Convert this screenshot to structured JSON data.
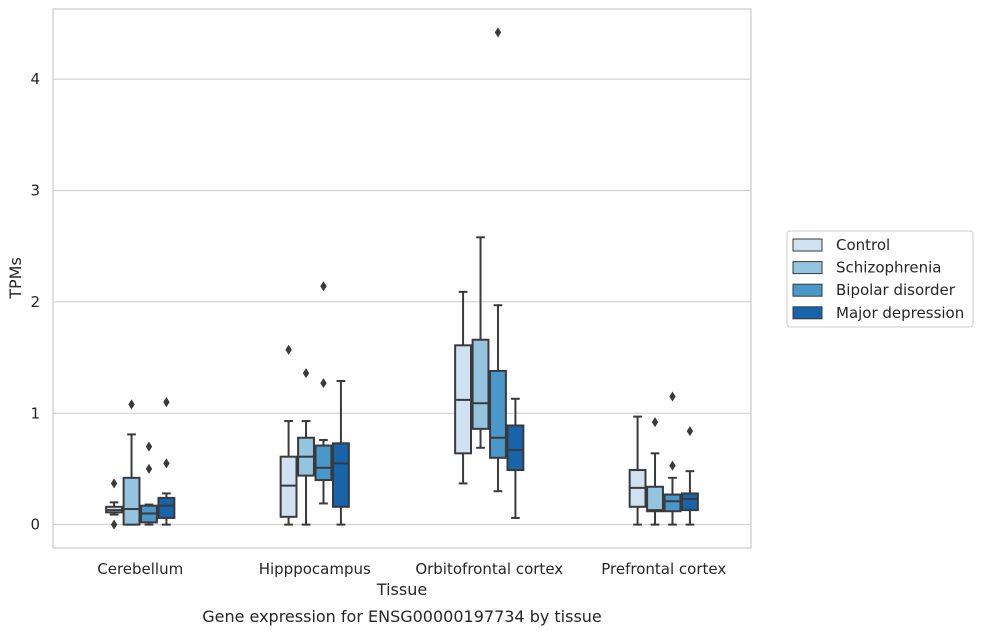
{
  "chart_data": {
    "type": "box",
    "xlabel": "Tissue",
    "ylabel": "TPMs",
    "caption": "Gene expression for ENSG00000197734 by tissue",
    "categories": [
      "Cerebellum",
      "Hipppocampus",
      "Orbitofrontal cortex",
      "Prefrontal cortex"
    ],
    "ylim": [
      -0.21,
      4.63
    ],
    "yticks": [
      0,
      1,
      2,
      3,
      4
    ],
    "grid": true,
    "legend_position": "right",
    "series": [
      {
        "name": "Control",
        "color": "#d0e1f2",
        "boxes": [
          {
            "whislo": 0.09,
            "q1": 0.11,
            "med": 0.13,
            "q3": 0.16,
            "whishi": 0.2,
            "fliers": [
              0.37,
              0.0
            ]
          },
          {
            "whislo": 0.0,
            "q1": 0.07,
            "med": 0.35,
            "q3": 0.61,
            "whishi": 0.93,
            "fliers": [
              1.57
            ]
          },
          {
            "whislo": 0.37,
            "q1": 0.64,
            "med": 1.12,
            "q3": 1.61,
            "whishi": 2.09,
            "fliers": []
          },
          {
            "whislo": 0.0,
            "q1": 0.16,
            "med": 0.33,
            "q3": 0.49,
            "whishi": 0.97,
            "fliers": []
          }
        ]
      },
      {
        "name": "Schizophrenia",
        "color": "#94c4df",
        "boxes": [
          {
            "whislo": 0.0,
            "q1": 0.0,
            "med": 0.14,
            "q3": 0.42,
            "whishi": 0.81,
            "fliers": [
              1.08
            ]
          },
          {
            "whislo": 0.0,
            "q1": 0.44,
            "med": 0.61,
            "q3": 0.78,
            "whishi": 0.93,
            "fliers": [
              1.36
            ]
          },
          {
            "whislo": 0.69,
            "q1": 0.86,
            "med": 1.09,
            "q3": 1.66,
            "whishi": 2.58,
            "fliers": []
          },
          {
            "whislo": 0.0,
            "q1": 0.12,
            "med": 0.13,
            "q3": 0.34,
            "whishi": 0.64,
            "fliers": [
              0.92
            ]
          }
        ]
      },
      {
        "name": "Bipolar disorder",
        "color": "#4a98c9",
        "boxes": [
          {
            "whislo": 0.0,
            "q1": 0.02,
            "med": 0.1,
            "q3": 0.17,
            "whishi": 0.18,
            "fliers": [
              0.7,
              0.5
            ]
          },
          {
            "whislo": 0.19,
            "q1": 0.4,
            "med": 0.51,
            "q3": 0.71,
            "whishi": 0.76,
            "fliers": [
              2.14,
              1.27
            ]
          },
          {
            "whislo": 0.3,
            "q1": 0.6,
            "med": 0.78,
            "q3": 1.38,
            "whishi": 1.97,
            "fliers": [
              4.42
            ]
          },
          {
            "whislo": 0.0,
            "q1": 0.12,
            "med": 0.21,
            "q3": 0.27,
            "whishi": 0.42,
            "fliers": [
              1.15,
              0.53
            ]
          }
        ]
      },
      {
        "name": "Major depression",
        "color": "#1764ab",
        "boxes": [
          {
            "whislo": 0.0,
            "q1": 0.06,
            "med": 0.17,
            "q3": 0.24,
            "whishi": 0.28,
            "fliers": [
              1.1,
              0.55
            ]
          },
          {
            "whislo": 0.0,
            "q1": 0.16,
            "med": 0.55,
            "q3": 0.73,
            "whishi": 1.29,
            "fliers": []
          },
          {
            "whislo": 0.06,
            "q1": 0.49,
            "med": 0.67,
            "q3": 0.89,
            "whishi": 1.13,
            "fliers": []
          },
          {
            "whislo": 0.0,
            "q1": 0.13,
            "med": 0.23,
            "q3": 0.28,
            "whishi": 0.48,
            "fliers": [
              0.84
            ]
          }
        ]
      }
    ]
  }
}
